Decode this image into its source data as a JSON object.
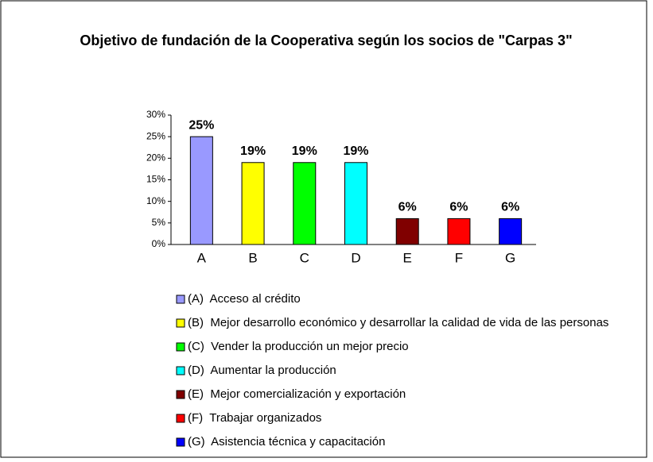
{
  "chart_data": {
    "type": "bar",
    "title": "Objetivo de fundación de la Cooperativa según los socios de \"Carpas 3\"",
    "categories": [
      "A",
      "B",
      "C",
      "D",
      "E",
      "F",
      "G"
    ],
    "values": [
      25,
      19,
      19,
      19,
      6,
      6,
      6
    ],
    "value_labels": [
      "25%",
      "19%",
      "19%",
      "19%",
      "6%",
      "6%",
      "6%"
    ],
    "colors": [
      "#9999ff",
      "#ffff00",
      "#00ff00",
      "#00ffff",
      "#800000",
      "#ff0000",
      "#0000ff"
    ],
    "ylim": [
      0,
      30
    ],
    "yticks": [
      {
        "value": 0,
        "label": "0%"
      },
      {
        "value": 5,
        "label": "5%"
      },
      {
        "value": 10,
        "label": "10%"
      },
      {
        "value": 15,
        "label": "15%"
      },
      {
        "value": 20,
        "label": "20%"
      },
      {
        "value": 25,
        "label": "25%"
      },
      {
        "value": 30,
        "label": "30%"
      }
    ],
    "legend": [
      "(A)  Acceso al crédito",
      "(B)  Mejor desarrollo económico y desarrollar la calidad de vida de las personas",
      "(C)  Vender la producción un mejor precio",
      "(D)  Aumentar la producción",
      "(E)  Mejor comercialización y exportación",
      "(F)  Trabajar organizados",
      "(G)  Asistencia técnica y capacitación"
    ]
  }
}
